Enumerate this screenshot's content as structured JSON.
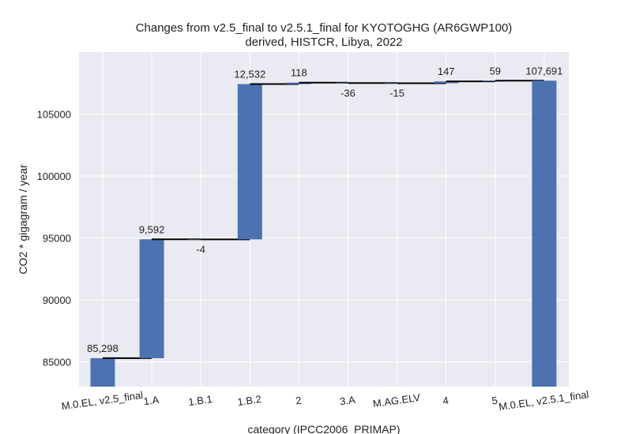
{
  "chart_data": {
    "type": "waterfall",
    "title": "Changes from v2.5_final to v2.5.1_final for KYOTOGHG (AR6GWP100)",
    "subtitle": "derived, HISTCR, Libya, 2022",
    "x_label": "category (IPCC2006_PRIMAP)",
    "y_label": "CO2 * gigagram / year",
    "categories": [
      "M.0.EL, v2.5_final",
      "1.A",
      "1.B.1",
      "1.B.2",
      "2",
      "3.A",
      "M.AG.ELV",
      "4",
      "5",
      "M.0.EL, v2.5.1_final"
    ],
    "values": [
      85298,
      9592,
      -4,
      12532,
      118,
      -36,
      -15,
      147,
      59,
      107691
    ],
    "value_labels": [
      "85,298",
      "9,592",
      "-4",
      "12,532",
      "118",
      "-36",
      "-15",
      "147",
      "59",
      "107,691"
    ],
    "color": "#4c72b0",
    "ylim": [
      83000,
      110000
    ],
    "yticks": [
      85000,
      90000,
      95000,
      100000,
      105000
    ],
    "grid": true
  }
}
